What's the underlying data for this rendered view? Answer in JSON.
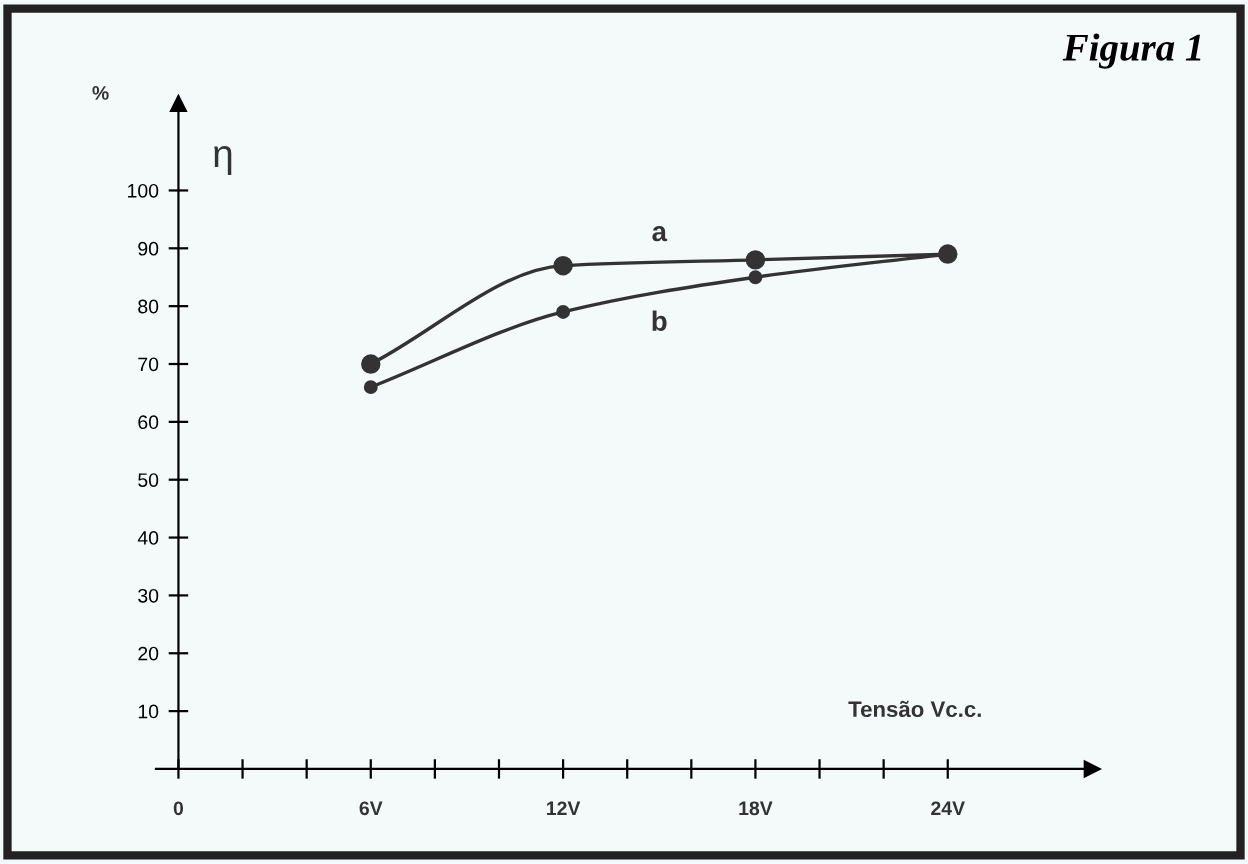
{
  "chart_data": {
    "type": "line",
    "title": "Figura 1",
    "xlabel": "Tensão Vc.c.",
    "ylabel": "%",
    "annotations": [
      "η"
    ],
    "x": [
      6,
      12,
      18,
      24
    ],
    "series": [
      {
        "name": "a",
        "color": "#333333",
        "values": [
          70,
          87,
          88,
          89
        ]
      },
      {
        "name": "b",
        "color": "#333333",
        "values": [
          66,
          79,
          85,
          89
        ]
      }
    ],
    "xlim": [
      -0.7,
      28.5
    ],
    "ylim": [
      0,
      115
    ],
    "xticks": [
      0,
      {
        "value": 2,
        "label": null
      },
      {
        "value": 4,
        "label": null
      },
      {
        "value": 6,
        "label": "6V"
      },
      {
        "value": 8,
        "label": null
      },
      {
        "value": 10,
        "label": null
      },
      {
        "value": 12,
        "label": "12V"
      },
      {
        "value": 14,
        "label": null
      },
      {
        "value": 16,
        "label": null
      },
      {
        "value": 18,
        "label": "18V"
      },
      {
        "value": 20,
        "label": null
      },
      {
        "value": 22,
        "label": null
      },
      {
        "value": 24,
        "label": "24V"
      }
    ],
    "yticks": [
      10,
      20,
      30,
      40,
      50,
      60,
      70,
      80,
      90,
      100
    ],
    "grid": false,
    "legend": false,
    "marker": "circle",
    "line_style": "solid"
  }
}
